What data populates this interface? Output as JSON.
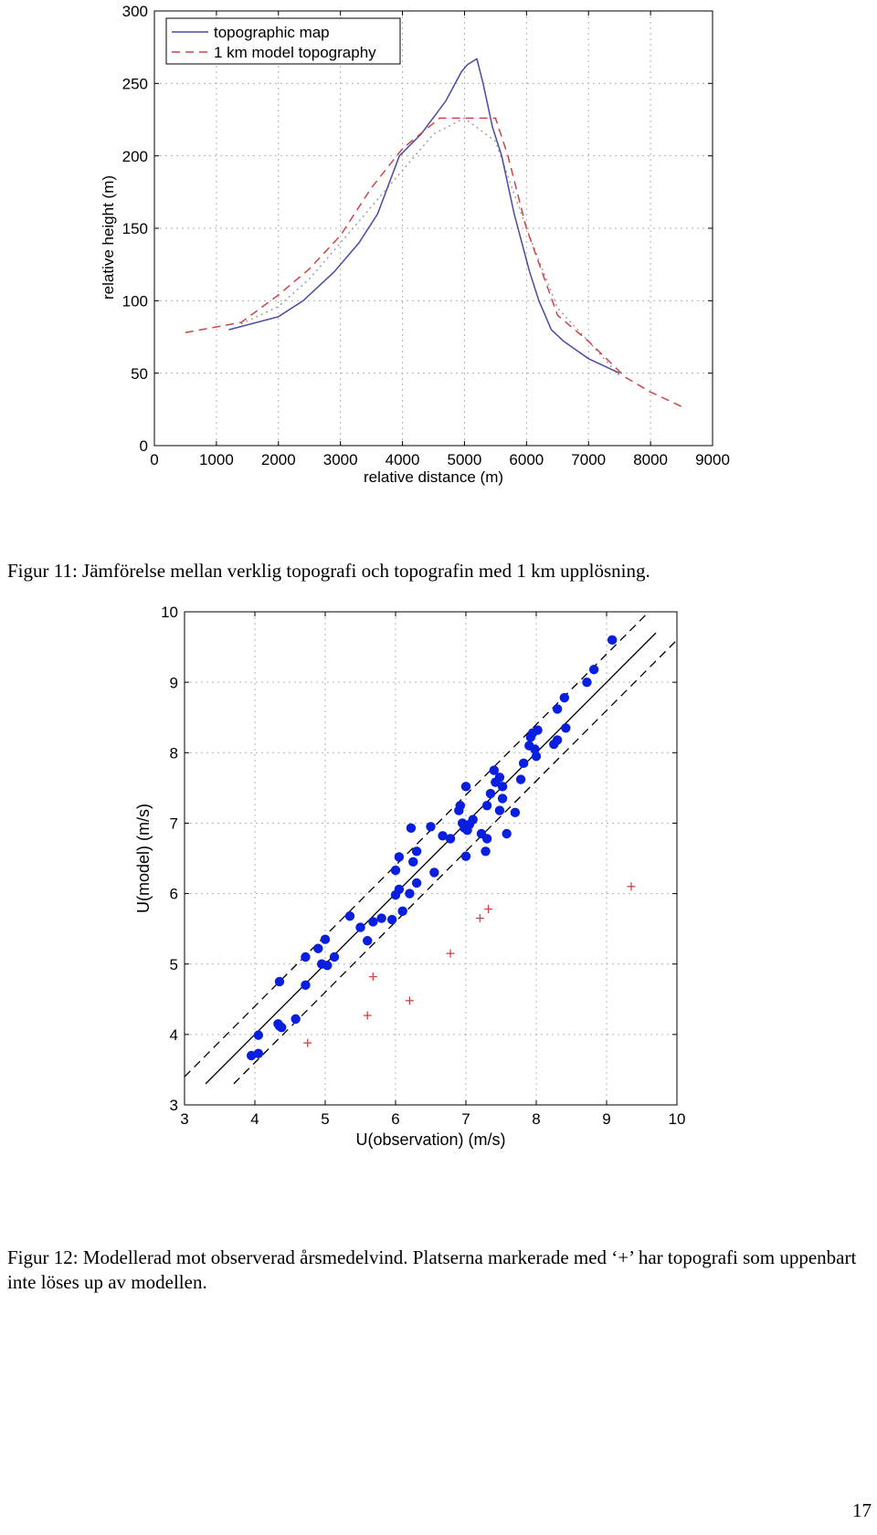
{
  "figure1": {
    "caption": "Figur 11: Jämförelse mellan verklig topografi och topografin med 1 km upplösning."
  },
  "figure2": {
    "caption": "Figur 12: Modellerad mot observerad årsmedelvind. Platserna markerade med ‘+’ har topografi som uppenbart inte löses up av modellen."
  },
  "page_number": "17",
  "colors": {
    "topo": "#4a4aa0",
    "model": "#cc4444",
    "points": "#0a1ee0",
    "plus": "#cc4444"
  },
  "chart_data": [
    {
      "type": "line",
      "xlabel": "relative distance (m)",
      "ylabel": "relative height (m)",
      "xlim": [
        0,
        9000
      ],
      "ylim": [
        0,
        300
      ],
      "xticks": [
        "0",
        "1000",
        "2000",
        "3000",
        "4000",
        "5000",
        "6000",
        "7000",
        "8000",
        "9000"
      ],
      "yticks": [
        "0",
        "50",
        "100",
        "150",
        "200",
        "250",
        "300"
      ],
      "grid": true,
      "legend": "top-left",
      "series": [
        {
          "name": "topographic map",
          "style": "solid",
          "color": "#4a4aa0",
          "x": [
            1200,
            2000,
            2400,
            2900,
            3300,
            3600,
            3950,
            4300,
            4700,
            4950,
            5050,
            5200,
            5300,
            5450,
            5600,
            5800,
            6050,
            6200,
            6400,
            6600,
            7000,
            7500
          ],
          "y": [
            80,
            89,
            100,
            120,
            140,
            160,
            200,
            215,
            238,
            258,
            263,
            267,
            250,
            220,
            200,
            160,
            120,
            100,
            80,
            72,
            60,
            50
          ]
        },
        {
          "name": "1 km model topography",
          "style": "dashed",
          "color": "#cc4444",
          "x": [
            500,
            1400,
            2000,
            2500,
            3000,
            3500,
            4000,
            4600,
            5000,
            5500,
            5700,
            6000,
            6500,
            7000,
            7600,
            8000,
            8500
          ],
          "y": [
            78,
            85,
            104,
            122,
            145,
            178,
            205,
            226,
            226,
            226,
            200,
            150,
            90,
            72,
            47,
            37,
            27
          ]
        }
      ],
      "extra_lines": [
        {
          "style": "dotted",
          "color": "#999999",
          "x": [
            1400,
            2000,
            2500,
            3000,
            3500,
            4000,
            4500,
            5000,
            5500,
            6000,
            6500,
            7000,
            7500
          ],
          "y": [
            84,
            96,
            115,
            140,
            165,
            190,
            215,
            226,
            210,
            150,
            95,
            72,
            48
          ]
        }
      ]
    },
    {
      "type": "scatter",
      "xlabel": "U(observation) (m/s)",
      "ylabel": "U(model) (m/s)",
      "xlim": [
        3,
        10
      ],
      "ylim": [
        3,
        10
      ],
      "xticks": [
        "3",
        "4",
        "5",
        "6",
        "7",
        "8",
        "9",
        "10"
      ],
      "yticks": [
        "3",
        "4",
        "5",
        "6",
        "7",
        "8",
        "9",
        "10"
      ],
      "grid": true,
      "lines": [
        {
          "style": "solid",
          "x": [
            3.3,
            9.7
          ],
          "y": [
            3.3,
            9.7
          ]
        },
        {
          "style": "dashed",
          "x": [
            3.0,
            9.6
          ],
          "y": [
            3.4,
            10.0
          ]
        },
        {
          "style": "dashed",
          "x": [
            3.7,
            10.0
          ],
          "y": [
            3.3,
            9.6
          ]
        }
      ],
      "series": [
        {
          "marker": "dot",
          "color": "#0a1ee0",
          "points": [
            [
              3.95,
              3.7
            ],
            [
              4.05,
              3.73
            ],
            [
              4.05,
              3.99
            ],
            [
              4.33,
              4.15
            ],
            [
              4.35,
              4.12
            ],
            [
              4.38,
              4.1
            ],
            [
              4.58,
              4.22
            ],
            [
              4.35,
              4.75
            ],
            [
              4.72,
              4.7
            ],
            [
              4.72,
              5.1
            ],
            [
              4.9,
              5.22
            ],
            [
              4.95,
              5.0
            ],
            [
              5.0,
              5.35
            ],
            [
              5.03,
              4.98
            ],
            [
              5.13,
              5.1
            ],
            [
              5.35,
              5.68
            ],
            [
              5.5,
              5.52
            ],
            [
              5.6,
              5.33
            ],
            [
              5.68,
              5.6
            ],
            [
              5.8,
              5.65
            ],
            [
              5.95,
              5.63
            ],
            [
              6.0,
              5.98
            ],
            [
              6.05,
              6.06
            ],
            [
              6.0,
              6.33
            ],
            [
              6.05,
              6.52
            ],
            [
              6.1,
              5.75
            ],
            [
              6.2,
              6.0
            ],
            [
              6.22,
              6.93
            ],
            [
              6.25,
              6.45
            ],
            [
              6.3,
              6.6
            ],
            [
              6.3,
              6.15
            ],
            [
              6.5,
              6.95
            ],
            [
              6.55,
              6.3
            ],
            [
              6.67,
              6.82
            ],
            [
              6.78,
              6.78
            ],
            [
              6.9,
              7.18
            ],
            [
              6.92,
              7.25
            ],
            [
              6.95,
              7.0
            ],
            [
              6.98,
              6.93
            ],
            [
              7.02,
              6.9
            ],
            [
              7.05,
              6.98
            ],
            [
              7.0,
              7.52
            ],
            [
              7.0,
              6.53
            ],
            [
              7.1,
              7.05
            ],
            [
              7.22,
              6.85
            ],
            [
              7.28,
              6.6
            ],
            [
              7.3,
              6.78
            ],
            [
              7.3,
              7.25
            ],
            [
              7.35,
              7.42
            ],
            [
              7.4,
              7.75
            ],
            [
              7.42,
              7.58
            ],
            [
              7.48,
              7.65
            ],
            [
              7.48,
              7.18
            ],
            [
              7.52,
              7.35
            ],
            [
              7.52,
              7.52
            ],
            [
              7.58,
              6.85
            ],
            [
              7.7,
              7.15
            ],
            [
              7.78,
              7.62
            ],
            [
              7.82,
              7.85
            ],
            [
              7.9,
              8.1
            ],
            [
              7.92,
              8.22
            ],
            [
              7.95,
              8.28
            ],
            [
              7.98,
              8.05
            ],
            [
              8.0,
              7.95
            ],
            [
              8.02,
              8.32
            ],
            [
              8.25,
              8.12
            ],
            [
              8.3,
              8.18
            ],
            [
              8.3,
              8.62
            ],
            [
              8.4,
              8.78
            ],
            [
              8.42,
              8.35
            ],
            [
              8.72,
              9.0
            ],
            [
              8.82,
              9.18
            ],
            [
              9.08,
              9.6
            ]
          ]
        },
        {
          "marker": "plus",
          "color": "#cc4444",
          "points": [
            [
              4.75,
              3.88
            ],
            [
              5.6,
              4.27
            ],
            [
              5.68,
              4.82
            ],
            [
              6.2,
              4.48
            ],
            [
              6.78,
              5.15
            ],
            [
              7.2,
              5.65
            ],
            [
              7.32,
              5.78
            ],
            [
              9.35,
              6.1
            ]
          ]
        }
      ]
    }
  ]
}
